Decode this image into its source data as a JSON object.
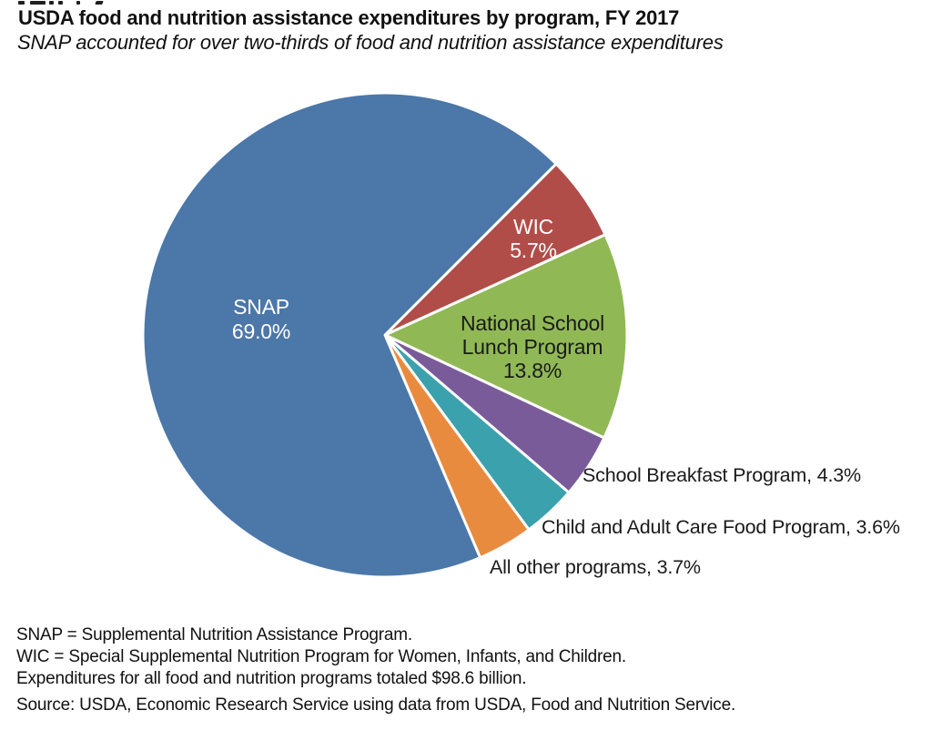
{
  "chart_data": {
    "type": "pie",
    "title": "USDA food and nutrition assistance expenditures by program, FY 2017",
    "subtitle": "SNAP accounted for over two-thirds of food and nutrition assistance expenditures",
    "start_angle_deg": 45,
    "legend_position": "labels-on-and-beside-slices",
    "total_label": "$98.6 billion",
    "slices": [
      {
        "label": "WIC",
        "value": 5.7,
        "pct_label": "5.7%",
        "color": "#b14d49"
      },
      {
        "label": "National School Lunch Program",
        "value": 13.8,
        "pct_label": "13.8%",
        "label_line1": "National School",
        "label_line2": "Lunch Program",
        "color": "#90b955"
      },
      {
        "label": "School Breakfast Program",
        "value": 4.3,
        "outer_label": "School Breakfast Program, 4.3%",
        "color": "#7a5b9a"
      },
      {
        "label": "Child and Adult Care Food Program",
        "value": 3.6,
        "outer_label": "Child and Adult Care Food Program, 3.6%",
        "color": "#3ba1ad"
      },
      {
        "label": "All other programs",
        "value": 3.7,
        "outer_label": "All other programs, 3.7%",
        "color": "#e98b3f"
      },
      {
        "label": "SNAP",
        "value": 69.0,
        "pct_label": "69.0%",
        "color": "#4b77a9"
      }
    ],
    "notes": [
      "SNAP = Supplemental Nutrition Assistance Program.",
      "WIC = Special Supplemental Nutrition Program for Women, Infants, and Children.",
      "Expenditures for all food and nutrition programs totaled $98.6 billion."
    ],
    "source": "Source: USDA, Economic Research Service using data from USDA, Food and Nutrition Service."
  }
}
